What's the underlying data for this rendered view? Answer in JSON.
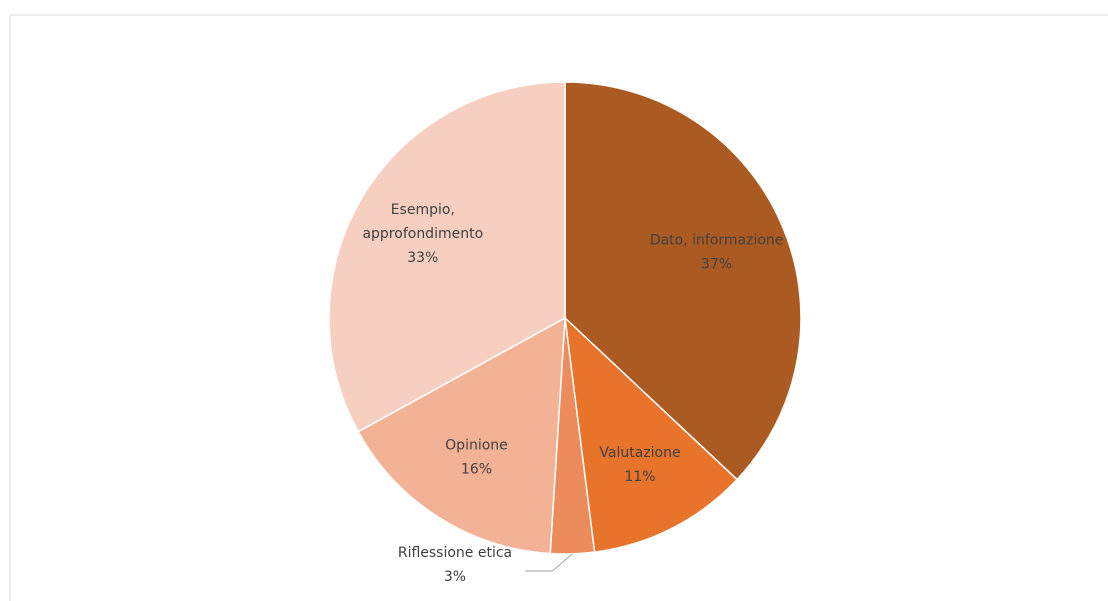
{
  "chart_data": {
    "type": "pie",
    "categories": [
      "Dato, informazione",
      "Valutazione",
      "Riflessione etica",
      "Opinione",
      "Esempio, approfondimento"
    ],
    "values": [
      37,
      11,
      3,
      16,
      33
    ],
    "value_labels": [
      "37%",
      "11%",
      "3%",
      "16%",
      "33%"
    ],
    "colors": [
      "#ab5a22",
      "#e8732a",
      "#ec8c5c",
      "#f3b295",
      "#f6cfc0"
    ]
  }
}
